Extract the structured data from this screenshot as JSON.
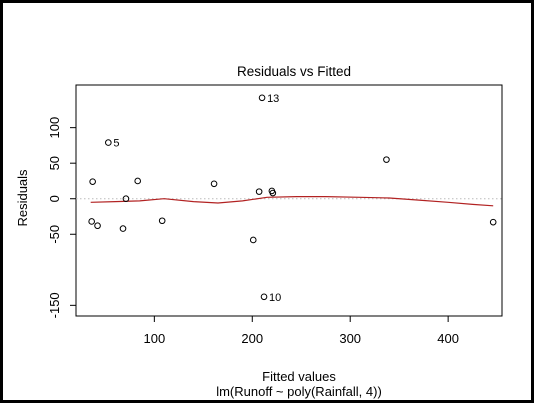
{
  "chart_data": {
    "type": "scatter",
    "title": "Residuals vs Fitted",
    "xlabel": "Fitted values",
    "ylabel": "Residuals",
    "subtitle": "lm(Runoff ~ poly(Rainfall, 4))",
    "xlim": [
      20,
      455
    ],
    "ylim": [
      -165,
      160
    ],
    "x_ticks": [
      100,
      200,
      300,
      400
    ],
    "y_ticks": [
      -150,
      -50,
      0,
      50,
      100
    ],
    "grid": false,
    "zero_line": {
      "value": 0,
      "style": "dotted",
      "color": "#bbbbbb"
    },
    "points": [
      {
        "x": 36,
        "y": -32
      },
      {
        "x": 37,
        "y": 24
      },
      {
        "x": 42,
        "y": -38
      },
      {
        "x": 53,
        "y": 79,
        "label": "5"
      },
      {
        "x": 68,
        "y": -42
      },
      {
        "x": 71,
        "y": 0
      },
      {
        "x": 83,
        "y": 25
      },
      {
        "x": 108,
        "y": -31
      },
      {
        "x": 161,
        "y": 21
      },
      {
        "x": 201,
        "y": -58
      },
      {
        "x": 207,
        "y": 10
      },
      {
        "x": 210,
        "y": 142,
        "label": "13"
      },
      {
        "x": 212,
        "y": -138,
        "label": "10"
      },
      {
        "x": 220,
        "y": 11
      },
      {
        "x": 221,
        "y": 8
      },
      {
        "x": 337,
        "y": 55
      },
      {
        "x": 446,
        "y": -33
      }
    ],
    "smoother": {
      "color": "#b22222",
      "x": [
        35,
        60,
        85,
        110,
        140,
        165,
        190,
        215,
        245,
        275,
        310,
        340,
        370,
        400,
        425,
        446
      ],
      "y": [
        -5,
        -4,
        -3,
        0,
        -4,
        -6,
        -3,
        2,
        3,
        3,
        2,
        1,
        -2,
        -5,
        -8,
        -10
      ]
    },
    "colors": {
      "frame": "#000000",
      "points": "#000000"
    }
  }
}
